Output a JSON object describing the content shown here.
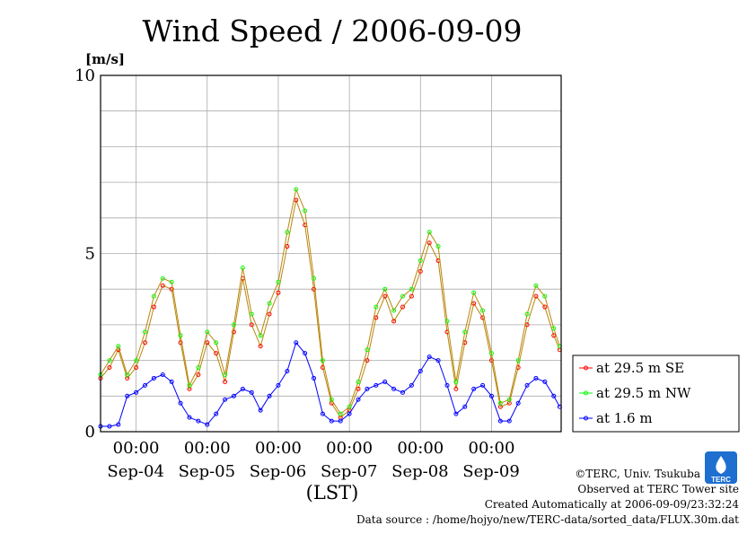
{
  "chart_data": {
    "type": "line",
    "title": "Wind Speed / 2006-09-09",
    "ylabel": "[m/s]",
    "xlabel": "(LST)",
    "ylim": [
      0,
      10
    ],
    "y_ticks": [
      "0",
      "5",
      "10"
    ],
    "x_range": [
      "2006-09-03 12:00",
      "2006-09-09 23:30"
    ],
    "x_tick_time_label": "00:00",
    "x_major_ticks": [
      "2006-09-04 00:00",
      "2006-09-05 00:00",
      "2006-09-06 00:00",
      "2006-09-07 00:00",
      "2006-09-08 00:00",
      "2006-09-09 00:00"
    ],
    "x_day_labels": [
      "Sep-04",
      "Sep-05",
      "Sep-06",
      "Sep-07",
      "Sep-08",
      "Sep-09"
    ],
    "grid": true,
    "legend_position": "right",
    "series": [
      {
        "name": "at 29.5 m SE",
        "color": "#ff0000",
        "line_color": "#b8860b",
        "x": [
          "2006-09-03 12:00",
          "2006-09-03 15:00",
          "2006-09-03 18:00",
          "2006-09-03 21:00",
          "2006-09-04 00:00",
          "2006-09-04 03:00",
          "2006-09-04 06:00",
          "2006-09-04 09:00",
          "2006-09-04 12:00",
          "2006-09-04 15:00",
          "2006-09-04 18:00",
          "2006-09-04 21:00",
          "2006-09-05 00:00",
          "2006-09-05 03:00",
          "2006-09-05 06:00",
          "2006-09-05 09:00",
          "2006-09-05 12:00",
          "2006-09-05 15:00",
          "2006-09-05 18:00",
          "2006-09-05 21:00",
          "2006-09-06 00:00",
          "2006-09-06 03:00",
          "2006-09-06 06:00",
          "2006-09-06 09:00",
          "2006-09-06 12:00",
          "2006-09-06 15:00",
          "2006-09-06 18:00",
          "2006-09-06 21:00",
          "2006-09-07 00:00",
          "2006-09-07 03:00",
          "2006-09-07 06:00",
          "2006-09-07 09:00",
          "2006-09-07 12:00",
          "2006-09-07 15:00",
          "2006-09-07 18:00",
          "2006-09-07 21:00",
          "2006-09-08 00:00",
          "2006-09-08 03:00",
          "2006-09-08 06:00",
          "2006-09-08 09:00",
          "2006-09-08 12:00",
          "2006-09-08 15:00",
          "2006-09-08 18:00",
          "2006-09-08 21:00",
          "2006-09-09 00:00",
          "2006-09-09 03:00",
          "2006-09-09 06:00",
          "2006-09-09 09:00",
          "2006-09-09 12:00",
          "2006-09-09 15:00",
          "2006-09-09 18:00",
          "2006-09-09 21:00",
          "2006-09-09 23:00"
        ],
        "values": [
          1.5,
          1.8,
          2.3,
          1.5,
          1.8,
          2.5,
          3.5,
          4.1,
          4.0,
          2.5,
          1.2,
          1.6,
          2.5,
          2.2,
          1.4,
          2.8,
          4.3,
          3.0,
          2.4,
          3.3,
          3.9,
          5.2,
          6.5,
          5.8,
          4.0,
          1.8,
          0.8,
          0.4,
          0.6,
          1.2,
          2.0,
          3.2,
          3.8,
          3.1,
          3.5,
          3.8,
          4.5,
          5.3,
          4.8,
          2.8,
          1.2,
          2.5,
          3.6,
          3.2,
          2.0,
          0.7,
          0.8,
          1.8,
          3.0,
          3.8,
          3.5,
          2.7,
          2.3
        ]
      },
      {
        "name": "at 29.5 m NW",
        "color": "#00ff00",
        "line_color": "#b8860b",
        "x": [
          "2006-09-03 12:00",
          "2006-09-03 15:00",
          "2006-09-03 18:00",
          "2006-09-03 21:00",
          "2006-09-04 00:00",
          "2006-09-04 03:00",
          "2006-09-04 06:00",
          "2006-09-04 09:00",
          "2006-09-04 12:00",
          "2006-09-04 15:00",
          "2006-09-04 18:00",
          "2006-09-04 21:00",
          "2006-09-05 00:00",
          "2006-09-05 03:00",
          "2006-09-05 06:00",
          "2006-09-05 09:00",
          "2006-09-05 12:00",
          "2006-09-05 15:00",
          "2006-09-05 18:00",
          "2006-09-05 21:00",
          "2006-09-06 00:00",
          "2006-09-06 03:00",
          "2006-09-06 06:00",
          "2006-09-06 09:00",
          "2006-09-06 12:00",
          "2006-09-06 15:00",
          "2006-09-06 18:00",
          "2006-09-06 21:00",
          "2006-09-07 00:00",
          "2006-09-07 03:00",
          "2006-09-07 06:00",
          "2006-09-07 09:00",
          "2006-09-07 12:00",
          "2006-09-07 15:00",
          "2006-09-07 18:00",
          "2006-09-07 21:00",
          "2006-09-08 00:00",
          "2006-09-08 03:00",
          "2006-09-08 06:00",
          "2006-09-08 09:00",
          "2006-09-08 12:00",
          "2006-09-08 15:00",
          "2006-09-08 18:00",
          "2006-09-08 21:00",
          "2006-09-09 00:00",
          "2006-09-09 03:00",
          "2006-09-09 06:00",
          "2006-09-09 09:00",
          "2006-09-09 12:00",
          "2006-09-09 15:00",
          "2006-09-09 18:00",
          "2006-09-09 21:00",
          "2006-09-09 23:00"
        ],
        "values": [
          1.6,
          2.0,
          2.4,
          1.6,
          2.0,
          2.8,
          3.8,
          4.3,
          4.2,
          2.7,
          1.3,
          1.8,
          2.8,
          2.5,
          1.6,
          3.0,
          4.6,
          3.3,
          2.7,
          3.6,
          4.2,
          5.6,
          6.8,
          6.2,
          4.3,
          2.0,
          0.9,
          0.5,
          0.7,
          1.4,
          2.3,
          3.5,
          4.0,
          3.4,
          3.8,
          4.0,
          4.8,
          5.6,
          5.2,
          3.1,
          1.4,
          2.8,
          3.9,
          3.4,
          2.2,
          0.8,
          0.9,
          2.0,
          3.3,
          4.1,
          3.8,
          2.9,
          2.4
        ]
      },
      {
        "name": "at 1.6 m",
        "color": "#0000ff",
        "line_color": "#0000ff",
        "x": [
          "2006-09-03 12:00",
          "2006-09-03 15:00",
          "2006-09-03 18:00",
          "2006-09-03 21:00",
          "2006-09-04 00:00",
          "2006-09-04 03:00",
          "2006-09-04 06:00",
          "2006-09-04 09:00",
          "2006-09-04 12:00",
          "2006-09-04 15:00",
          "2006-09-04 18:00",
          "2006-09-04 21:00",
          "2006-09-05 00:00",
          "2006-09-05 03:00",
          "2006-09-05 06:00",
          "2006-09-05 09:00",
          "2006-09-05 12:00",
          "2006-09-05 15:00",
          "2006-09-05 18:00",
          "2006-09-05 21:00",
          "2006-09-06 00:00",
          "2006-09-06 03:00",
          "2006-09-06 06:00",
          "2006-09-06 09:00",
          "2006-09-06 12:00",
          "2006-09-06 15:00",
          "2006-09-06 18:00",
          "2006-09-06 21:00",
          "2006-09-07 00:00",
          "2006-09-07 03:00",
          "2006-09-07 06:00",
          "2006-09-07 09:00",
          "2006-09-07 12:00",
          "2006-09-07 15:00",
          "2006-09-07 18:00",
          "2006-09-07 21:00",
          "2006-09-08 00:00",
          "2006-09-08 03:00",
          "2006-09-08 06:00",
          "2006-09-08 09:00",
          "2006-09-08 12:00",
          "2006-09-08 15:00",
          "2006-09-08 18:00",
          "2006-09-08 21:00",
          "2006-09-09 00:00",
          "2006-09-09 03:00",
          "2006-09-09 06:00",
          "2006-09-09 09:00",
          "2006-09-09 12:00",
          "2006-09-09 15:00",
          "2006-09-09 18:00",
          "2006-09-09 21:00",
          "2006-09-09 23:00"
        ],
        "values": [
          0.15,
          0.15,
          0.2,
          1.0,
          1.1,
          1.3,
          1.5,
          1.6,
          1.4,
          0.8,
          0.4,
          0.3,
          0.2,
          0.5,
          0.9,
          1.0,
          1.2,
          1.1,
          0.6,
          1.0,
          1.3,
          1.7,
          2.5,
          2.2,
          1.5,
          0.5,
          0.3,
          0.3,
          0.5,
          0.9,
          1.2,
          1.3,
          1.4,
          1.2,
          1.1,
          1.3,
          1.7,
          2.1,
          2.0,
          1.3,
          0.5,
          0.7,
          1.2,
          1.3,
          1.0,
          0.3,
          0.3,
          0.8,
          1.3,
          1.5,
          1.4,
          1.0,
          0.7
        ]
      }
    ]
  },
  "footer": {
    "copyright": "©TERC, Univ. Tsukuba",
    "site": "Observed at TERC Tower site",
    "created": "Created Automatically at 2006-09-09/23:32:24",
    "source": "Data source : /home/hojyo/new/TERC-data/sorted_data/FLUX.30m.dat"
  },
  "logo": {
    "text": "TERC",
    "color": "#1e6fd0"
  }
}
